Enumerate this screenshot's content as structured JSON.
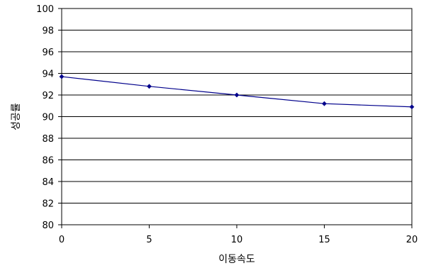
{
  "chart_data": {
    "type": "line",
    "title": "",
    "xlabel": "이동속도",
    "ylabel": "성공률",
    "xlim": [
      0,
      20
    ],
    "ylim": [
      80,
      100
    ],
    "xticks": [
      0,
      5,
      10,
      15,
      20
    ],
    "yticks": [
      80,
      82,
      84,
      86,
      88,
      90,
      92,
      94,
      96,
      98,
      100
    ],
    "grid": "horizontal",
    "legend": "none",
    "series": [
      {
        "x": [
          0,
          5,
          10,
          15,
          20
        ],
        "y": [
          93.7,
          92.8,
          92.0,
          91.2,
          90.9
        ],
        "color": "#00008b"
      }
    ]
  }
}
